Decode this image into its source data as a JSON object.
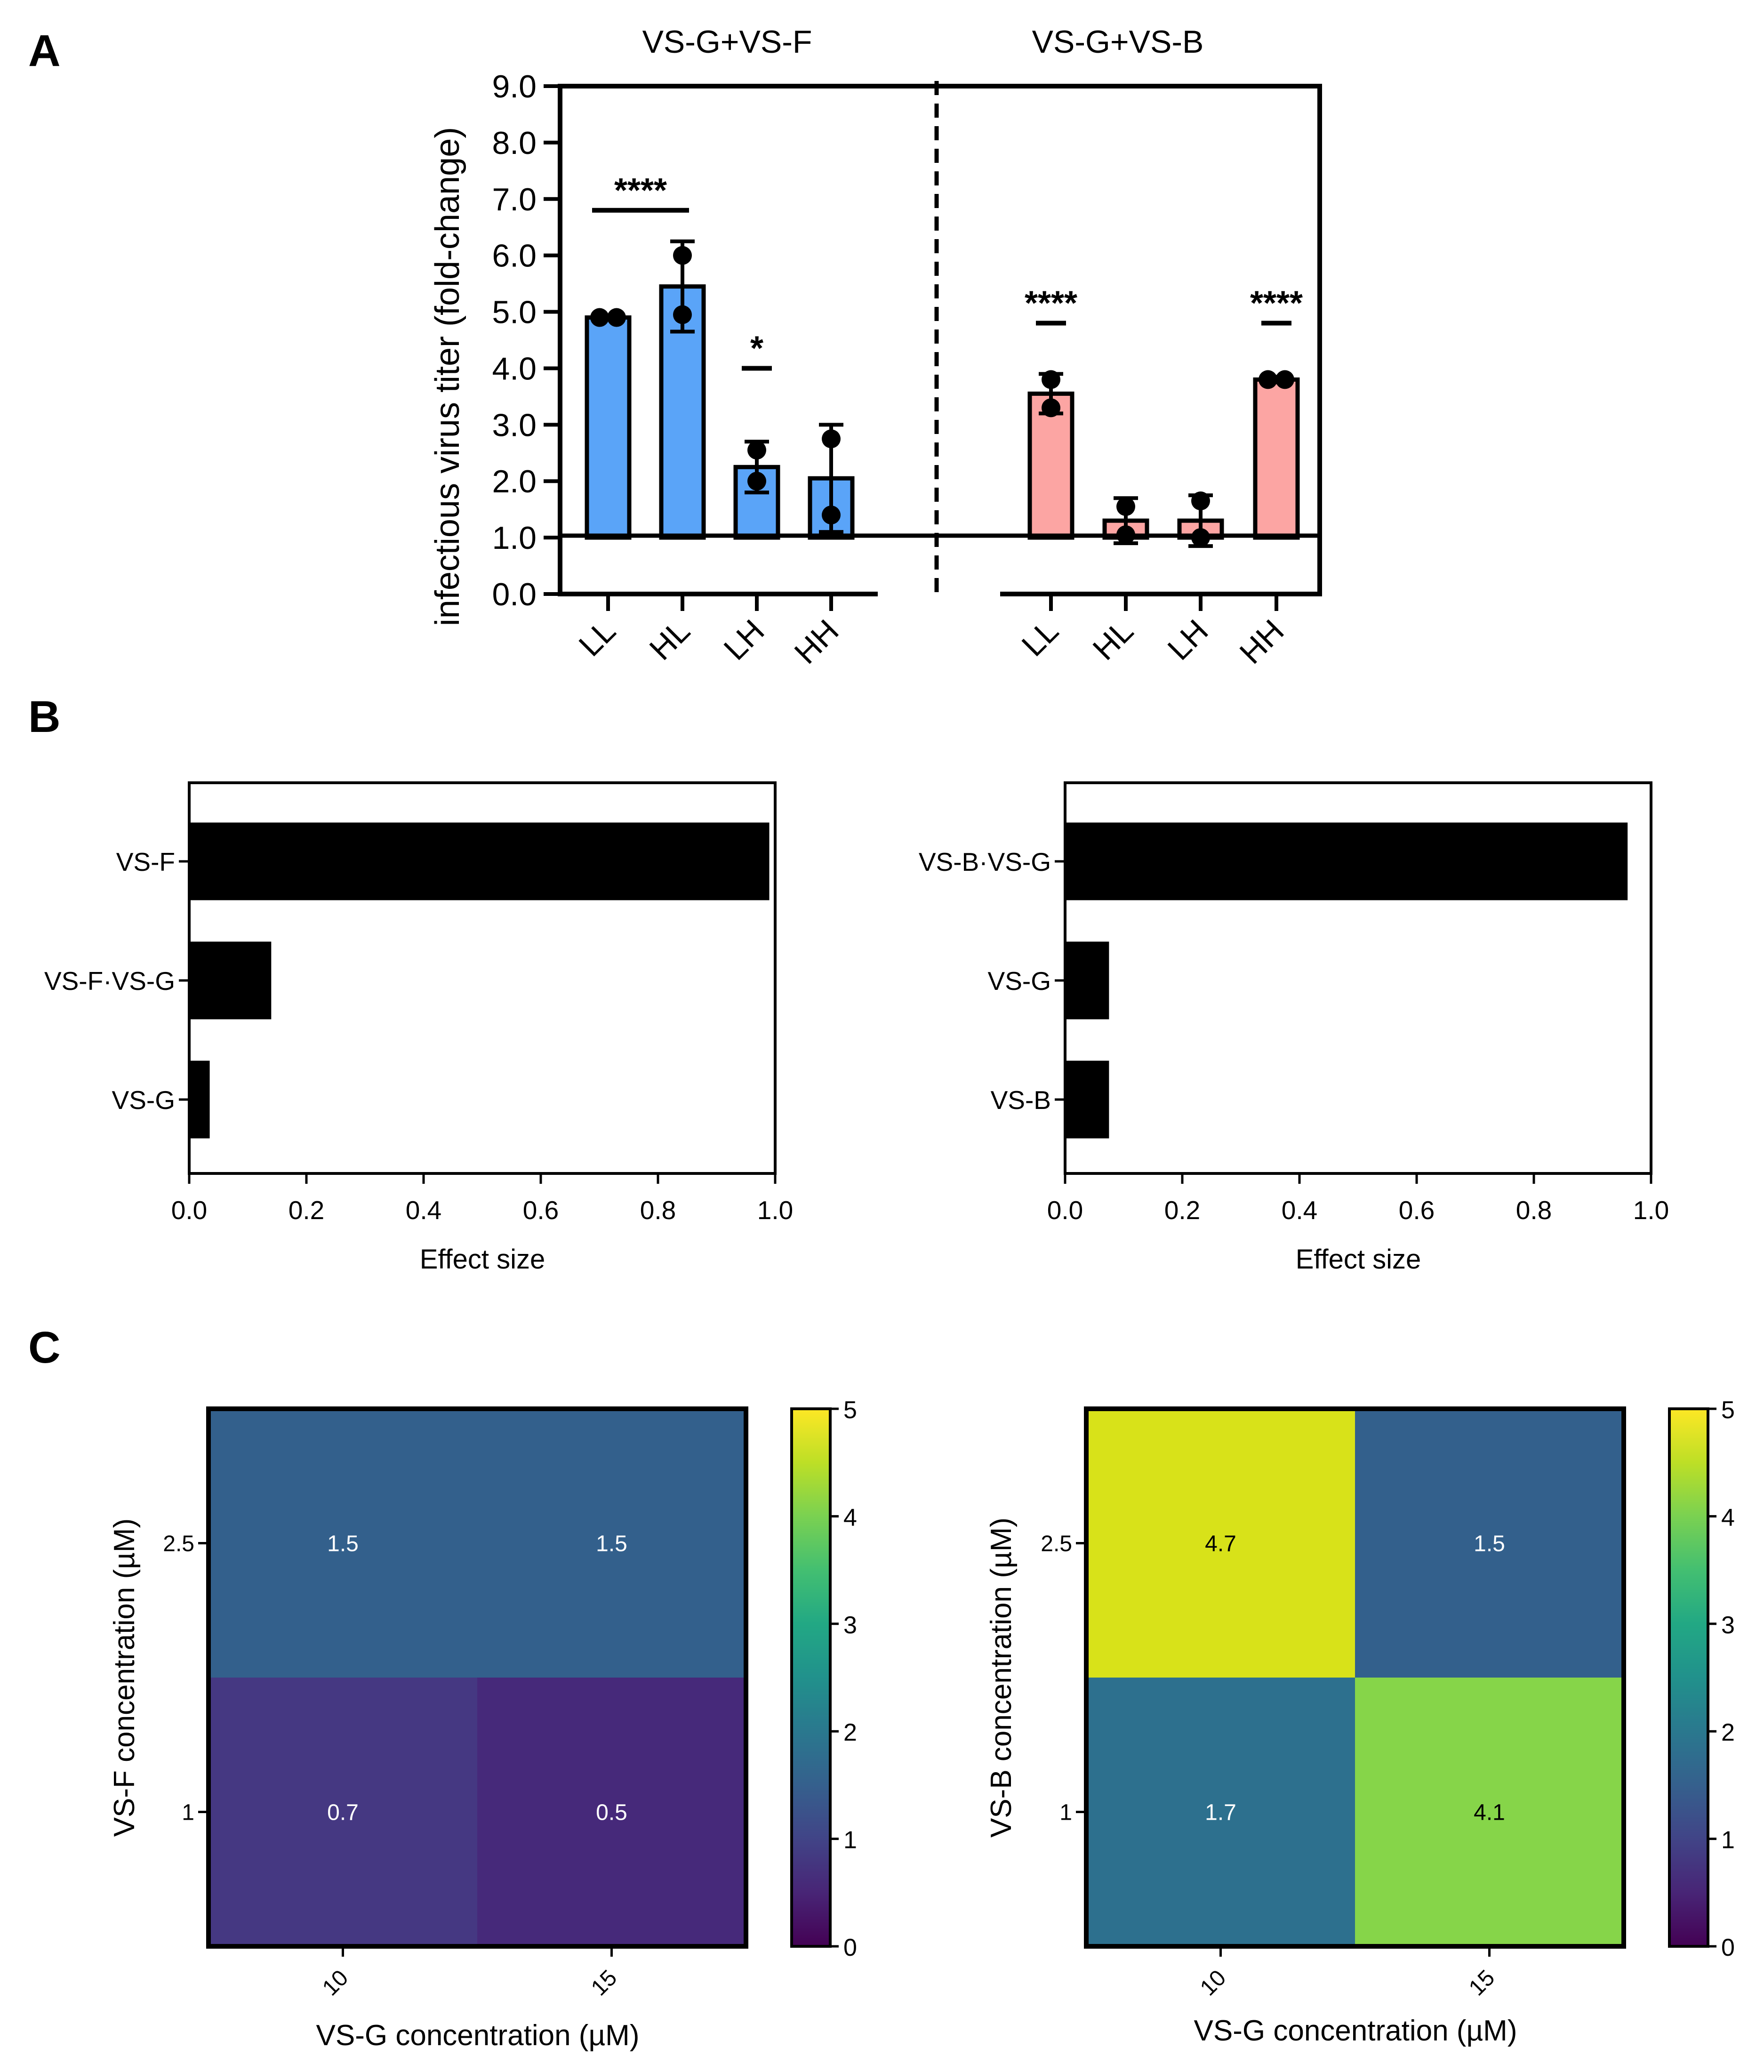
{
  "panel_labels": [
    "A",
    "B",
    "C"
  ],
  "chart_data": [
    {
      "id": "A",
      "type": "bar",
      "ylabel": "infectious virus titer (fold-change)",
      "ylim": [
        0,
        9
      ],
      "yticks": [
        "0.0",
        "1.0",
        "2.0",
        "3.0",
        "4.0",
        "5.0",
        "6.0",
        "7.0",
        "8.0",
        "9.0"
      ],
      "baseline": 1.0,
      "groups": [
        {
          "title": "VS-G+VS-F",
          "color": "#5aa4f8",
          "categories": [
            "LL",
            "HL",
            "LH",
            "HH"
          ],
          "values": [
            4.9,
            5.45,
            2.25,
            2.05
          ],
          "errors": [
            0.0,
            0.8,
            0.45,
            0.95
          ],
          "points": [
            [
              4.9,
              4.9
            ],
            [
              6.0,
              4.95
            ],
            [
              2.55,
              2.0
            ],
            [
              2.75,
              1.4
            ]
          ],
          "significance": [
            {
              "label": "****",
              "from": 0,
              "to": 1,
              "y": 6.8
            },
            {
              "label": "*",
              "from": 2,
              "to": 2,
              "y": 4.0
            }
          ]
        },
        {
          "title": "VS-G+VS-B",
          "color": "#fca5a3",
          "categories": [
            "LL",
            "HL",
            "LH",
            "HH"
          ],
          "values": [
            3.55,
            1.3,
            1.3,
            3.8
          ],
          "errors": [
            0.35,
            0.4,
            0.45,
            0.05
          ],
          "points": [
            [
              3.8,
              3.3
            ],
            [
              1.55,
              1.05
            ],
            [
              1.65,
              1.0
            ],
            [
              3.8,
              3.8
            ]
          ],
          "significance": [
            {
              "label": "****",
              "from": 0,
              "to": 0,
              "y": 4.8
            },
            {
              "label": "****",
              "from": 3,
              "to": 3,
              "y": 4.8
            }
          ]
        }
      ]
    },
    {
      "id": "B-left",
      "type": "bar",
      "orientation": "horizontal",
      "categories": [
        "VS-F",
        "VS-F·VS-G",
        "VS-G"
      ],
      "values": [
        0.99,
        0.14,
        0.035
      ],
      "xlabel": "Effect size",
      "xlim": [
        0,
        1
      ],
      "xticks": [
        "0.0",
        "0.2",
        "0.4",
        "0.6",
        "0.8",
        "1.0"
      ],
      "color": "#000000"
    },
    {
      "id": "B-right",
      "type": "bar",
      "orientation": "horizontal",
      "categories": [
        "VS-B·VS-G",
        "VS-G",
        "VS-B"
      ],
      "values": [
        0.96,
        0.075,
        0.075
      ],
      "xlabel": "Effect size",
      "xlim": [
        0,
        1
      ],
      "xticks": [
        "0.0",
        "0.2",
        "0.4",
        "0.6",
        "0.8",
        "1.0"
      ],
      "color": "#000000"
    },
    {
      "id": "C-left",
      "type": "heatmap",
      "xlabel": "VS-G concentration (µM)",
      "ylabel": "VS-F concentration (µM)",
      "xticks": [
        "10",
        "15"
      ],
      "yticks": [
        "2.5",
        "1"
      ],
      "values": [
        [
          1.5,
          1.5
        ],
        [
          0.7,
          0.5
        ]
      ],
      "cell_colors": [
        [
          "#33608c",
          "#33608c"
        ],
        [
          "#453882",
          "#46297a"
        ]
      ],
      "cell_labels": [
        [
          "1.5",
          "1.5"
        ],
        [
          "0.7",
          "0.5"
        ]
      ],
      "label_colors": [
        [
          "#ffffff",
          "#ffffff"
        ],
        [
          "#ffffff",
          "#ffffff"
        ]
      ],
      "colorbar": {
        "range": [
          0,
          5
        ],
        "ticks": [
          "0",
          "1",
          "2",
          "3",
          "4",
          "5"
        ]
      }
    },
    {
      "id": "C-right",
      "type": "heatmap",
      "xlabel": "VS-G concentration (µM)",
      "ylabel": "VS-B concentration (µM)",
      "xticks": [
        "10",
        "15"
      ],
      "yticks": [
        "2.5",
        "1"
      ],
      "values": [
        [
          4.7,
          1.5
        ],
        [
          1.7,
          4.1
        ]
      ],
      "cell_colors": [
        [
          "#d8e219",
          "#33608c"
        ],
        [
          "#2d708e",
          "#86d549"
        ]
      ],
      "cell_labels": [
        [
          "4.7",
          "1.5"
        ],
        [
          "1.7",
          "4.1"
        ]
      ],
      "label_colors": [
        [
          "#000000",
          "#ffffff"
        ],
        [
          "#ffffff",
          "#000000"
        ]
      ],
      "colorbar": {
        "range": [
          0,
          5
        ],
        "ticks": [
          "0",
          "1",
          "2",
          "3",
          "4",
          "5"
        ]
      }
    }
  ]
}
